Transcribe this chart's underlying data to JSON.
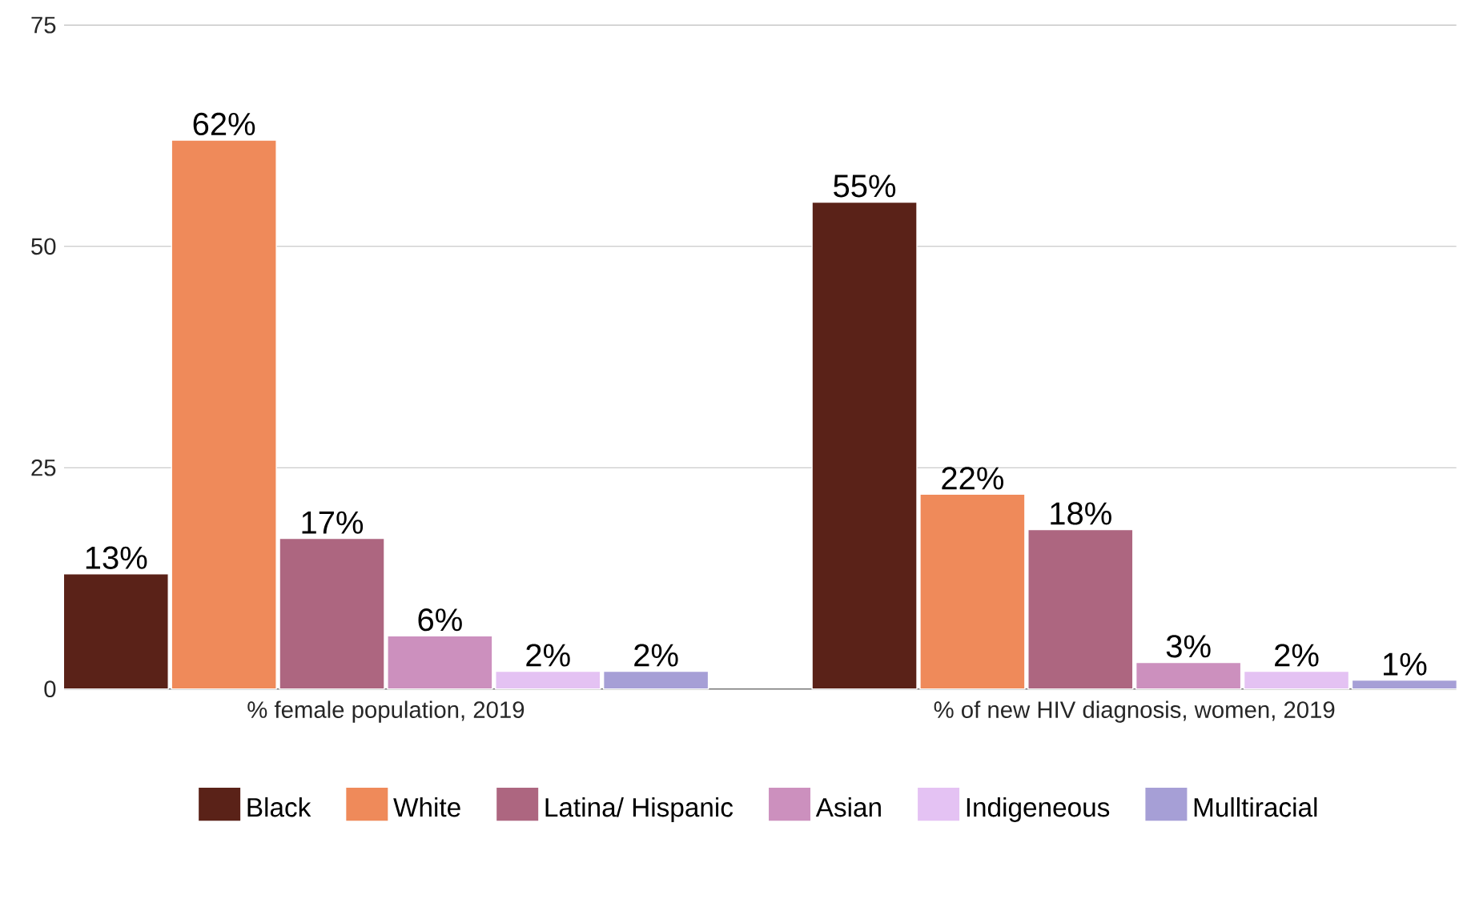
{
  "chart_data": {
    "type": "bar",
    "categories": [
      "% female population, 2019",
      "% of new HIV diagnosis, women, 2019"
    ],
    "series": [
      {
        "name": "Black",
        "color": "#5a2218",
        "values": [
          13,
          55
        ],
        "value_labels": [
          "13%",
          "55%"
        ]
      },
      {
        "name": "White",
        "color": "#ef8a5a",
        "values": [
          62,
          22
        ],
        "value_labels": [
          "62%",
          "22%"
        ]
      },
      {
        "name": "Latina/ Hispanic",
        "color": "#ad6680",
        "values": [
          17,
          18
        ],
        "value_labels": [
          "17%",
          "18%"
        ]
      },
      {
        "name": "Asian",
        "color": "#cc90be",
        "values": [
          6,
          3
        ],
        "value_labels": [
          "6%",
          "3%"
        ]
      },
      {
        "name": "Indigeneous",
        "color": "#e4c2f3",
        "values": [
          2,
          2
        ],
        "value_labels": [
          "2%",
          "2%"
        ]
      },
      {
        "name": "Mulltiracial",
        "color": "#a69fd6",
        "values": [
          2,
          1
        ],
        "value_labels": [
          "2%",
          "1%"
        ]
      }
    ],
    "ylim": [
      0,
      75
    ],
    "yticks": [
      0,
      25,
      50,
      75
    ],
    "grid": "y",
    "legend": "bottom"
  }
}
